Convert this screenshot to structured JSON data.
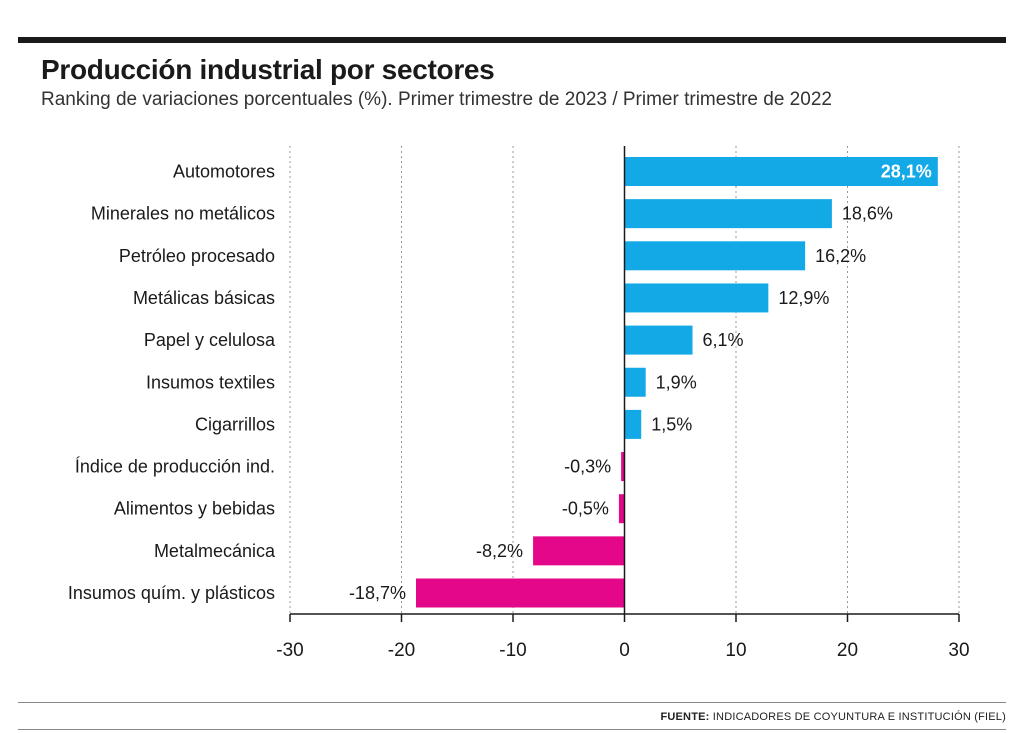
{
  "header": {
    "title": "Producción industrial por sectores",
    "subtitle": "Ranking de variaciones porcentuales (%). Primer trimestre de 2023 / Primer trimestre de 2022"
  },
  "footer": {
    "source_label": "FUENTE:",
    "source_text": "INDICADORES DE COYUNTURA E INSTITUCIÓN (FIEL)"
  },
  "colors": {
    "positive": "#12A9E6",
    "negative": "#E5078A",
    "text": "#1a1a1a",
    "highlight_label": "#ffffff"
  },
  "chart_data": {
    "type": "bar",
    "orientation": "horizontal",
    "categories": [
      "Automotores",
      "Minerales no metálicos",
      "Petróleo procesado",
      "Metálicas básicas",
      "Papel y celulosa",
      "Insumos textiles",
      "Cigarrillos",
      "Índice de producción ind.",
      "Alimentos y bebidas",
      "Metalmecánica",
      "Insumos quím. y plásticos"
    ],
    "values": [
      28.1,
      18.6,
      16.2,
      12.9,
      6.1,
      1.9,
      1.5,
      -0.3,
      -0.5,
      -8.2,
      -18.7
    ],
    "value_labels": [
      "28,1%",
      "18,6%",
      "16,2%",
      "12,9%",
      "6,1%",
      "1,9%",
      "1,5%",
      "-0,3%",
      "-0,5%",
      "-8,2%",
      "-18,7%"
    ],
    "xlim": [
      -30,
      30
    ],
    "xticks": [
      -30,
      -20,
      -10,
      0,
      10,
      20,
      30
    ],
    "xtick_labels": [
      "-30",
      "-20",
      "-10",
      "0",
      "10",
      "20",
      "30"
    ],
    "grid": "vertical dotted",
    "legend": "none"
  }
}
